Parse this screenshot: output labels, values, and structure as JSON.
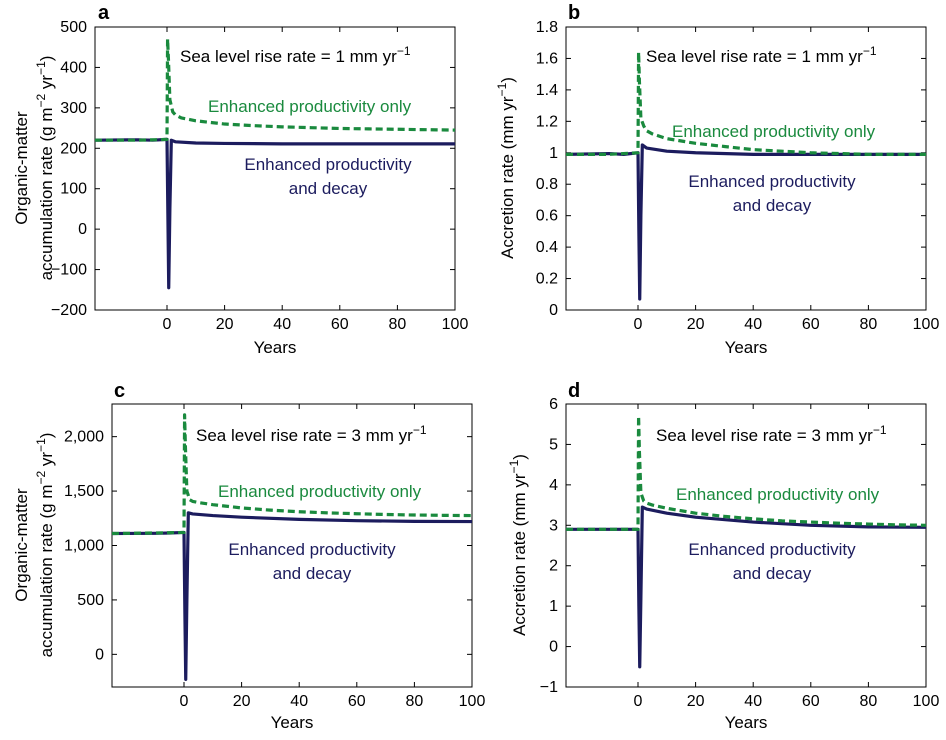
{
  "colors": {
    "enhanced_productivity_only": "#1a8a3e",
    "enhanced_productivity_and_decay": "#1c1c5e"
  },
  "chart_data": [
    {
      "panel": "a",
      "type": "line",
      "xlabel": "Years",
      "ylabel": [
        "Organic-matter",
        "accumulation rate (g m",
        "−2",
        " yr",
        "−1",
        ")"
      ],
      "xlim": [
        -25,
        100
      ],
      "ylim": [
        -200,
        500
      ],
      "xticks": [
        0,
        20,
        40,
        60,
        80,
        100
      ],
      "yticks": [
        -200,
        -100,
        0,
        100,
        200,
        300,
        400,
        500
      ],
      "ytick_labels": [
        "−200",
        "−100",
        "0",
        "100",
        "200",
        "300",
        "400",
        "500"
      ],
      "title_annotation": {
        "text": "Sea level rise rate = 1 mm yr",
        "sup": "−1"
      },
      "series": [
        {
          "name": "Enhanced productivity only",
          "style": "dashed",
          "color": "#1a8a3e",
          "x": [
            -25,
            -10,
            0,
            0.2,
            0.5,
            1,
            2,
            3,
            5,
            10,
            20,
            30,
            40,
            50,
            60,
            70,
            80,
            90,
            100
          ],
          "y": [
            220,
            220,
            222,
            470,
            420,
            320,
            290,
            282,
            275,
            268,
            260,
            256,
            253,
            251,
            249,
            248,
            247,
            246,
            245
          ]
        },
        {
          "name": "Enhanced productivity and decay",
          "style": "solid",
          "color": "#1c1c5e",
          "x": [
            -25,
            -10,
            -5,
            0,
            0.3,
            0.6,
            1,
            1.5,
            3,
            10,
            20,
            40,
            60,
            80,
            100
          ],
          "y": [
            220,
            221,
            220,
            222,
            40,
            -145,
            50,
            220,
            216,
            213,
            212,
            211,
            211,
            211,
            211
          ]
        }
      ],
      "labels": [
        {
          "lines": [
            "Enhanced productivity only"
          ],
          "series": 0
        },
        {
          "lines": [
            "Enhanced productivity",
            "and decay"
          ],
          "series": 1
        }
      ]
    },
    {
      "panel": "b",
      "type": "line",
      "xlabel": "Years",
      "ylabel": [
        "Accretion rate (mm yr",
        "−1",
        ")"
      ],
      "xlim": [
        -25,
        100
      ],
      "ylim": [
        0,
        1.8
      ],
      "xticks": [
        0,
        20,
        40,
        60,
        80,
        100
      ],
      "yticks": [
        0,
        0.2,
        0.4,
        0.6,
        0.8,
        1,
        1.2,
        1.4,
        1.6,
        1.8
      ],
      "ytick_labels": [
        "0",
        "0.2",
        "0.4",
        "0.6",
        "0.8",
        "1",
        "1.2",
        "1.4",
        "1.6",
        "1.8"
      ],
      "title_annotation": {
        "text": "Sea level rise rate = 1 mm yr",
        "sup": "−1"
      },
      "series": [
        {
          "name": "Enhanced productivity only",
          "style": "dashed",
          "color": "#1a8a3e",
          "x": [
            -25,
            -10,
            0,
            0.2,
            0.5,
            1,
            2,
            3,
            5,
            10,
            20,
            30,
            40,
            50,
            60,
            70,
            80,
            90,
            100
          ],
          "y": [
            0.99,
            0.99,
            1.0,
            1.64,
            1.45,
            1.22,
            1.17,
            1.14,
            1.12,
            1.09,
            1.06,
            1.04,
            1.02,
            1.01,
            1.0,
            0.995,
            0.99,
            0.99,
            0.99
          ]
        },
        {
          "name": "Enhanced productivity and decay",
          "style": "solid",
          "color": "#1c1c5e",
          "x": [
            -25,
            -10,
            -5,
            0,
            0.3,
            0.6,
            1,
            1.5,
            3,
            10,
            20,
            40,
            60,
            80,
            100
          ],
          "y": [
            0.99,
            0.995,
            0.99,
            1.0,
            0.5,
            0.07,
            0.6,
            1.05,
            1.03,
            1.01,
            1.0,
            0.99,
            0.99,
            0.99,
            0.99
          ]
        }
      ],
      "labels": [
        {
          "lines": [
            "Enhanced productivity only"
          ],
          "series": 0
        },
        {
          "lines": [
            "Enhanced productivity",
            "and decay"
          ],
          "series": 1
        }
      ]
    },
    {
      "panel": "c",
      "type": "line",
      "xlabel": "Years",
      "ylabel": [
        "Organic-matter",
        "accumulation rate (g m",
        "−2",
        " yr",
        "−1",
        ")"
      ],
      "xlim": [
        -25,
        100
      ],
      "ylim": [
        -300,
        2300
      ],
      "xticks": [
        0,
        20,
        40,
        60,
        80,
        100
      ],
      "yticks": [
        0,
        500,
        1000,
        1500,
        2000
      ],
      "ytick_labels": [
        "0",
        "500",
        "1,000",
        "1,500",
        "2,000"
      ],
      "title_annotation": {
        "text": "Sea level rise rate = 3 mm yr",
        "sup": "−1"
      },
      "series": [
        {
          "name": "Enhanced productivity only",
          "style": "dashed",
          "color": "#1a8a3e",
          "x": [
            -25,
            -10,
            0,
            0.2,
            0.5,
            1,
            2,
            3,
            5,
            10,
            20,
            30,
            40,
            50,
            60,
            70,
            80,
            90,
            100
          ],
          "y": [
            1110,
            1115,
            1120,
            2200,
            1900,
            1500,
            1420,
            1405,
            1395,
            1375,
            1345,
            1325,
            1310,
            1300,
            1292,
            1285,
            1280,
            1277,
            1275
          ]
        },
        {
          "name": "Enhanced productivity and decay",
          "style": "solid",
          "color": "#1c1c5e",
          "x": [
            -25,
            -10,
            -5,
            0,
            0.3,
            0.6,
            1,
            1.5,
            3,
            10,
            20,
            40,
            60,
            80,
            100
          ],
          "y": [
            1110,
            1112,
            1115,
            1120,
            400,
            -230,
            500,
            1300,
            1290,
            1275,
            1260,
            1240,
            1228,
            1222,
            1220
          ]
        }
      ],
      "labels": [
        {
          "lines": [
            "Enhanced productivity only"
          ],
          "series": 0
        },
        {
          "lines": [
            "Enhanced productivity",
            "and decay"
          ],
          "series": 1
        }
      ]
    },
    {
      "panel": "d",
      "type": "line",
      "xlabel": "Years",
      "ylabel": [
        "Accretion rate (mm yr",
        "−1",
        ")"
      ],
      "xlim": [
        -25,
        100
      ],
      "ylim": [
        -1,
        6
      ],
      "xticks": [
        0,
        20,
        40,
        60,
        80,
        100
      ],
      "yticks": [
        -1,
        0,
        1,
        2,
        3,
        4,
        5,
        6
      ],
      "ytick_labels": [
        "−1",
        "0",
        "1",
        "2",
        "3",
        "4",
        "5",
        "6"
      ],
      "title_annotation": {
        "text": "Sea level rise rate = 3 mm yr",
        "sup": "−1"
      },
      "series": [
        {
          "name": "Enhanced productivity only",
          "style": "dashed",
          "color": "#1a8a3e",
          "x": [
            -25,
            -10,
            0,
            0.2,
            0.5,
            1,
            2,
            3,
            5,
            10,
            20,
            30,
            40,
            50,
            60,
            70,
            80,
            90,
            100
          ],
          "y": [
            2.9,
            2.9,
            2.9,
            5.7,
            4.8,
            3.8,
            3.6,
            3.55,
            3.5,
            3.42,
            3.3,
            3.22,
            3.16,
            3.11,
            3.08,
            3.05,
            3.03,
            3.01,
            3.0
          ]
        },
        {
          "name": "Enhanced productivity and decay",
          "style": "solid",
          "color": "#1c1c5e",
          "x": [
            -25,
            -10,
            -5,
            0,
            0.3,
            0.6,
            1,
            1.5,
            3,
            10,
            20,
            40,
            60,
            80,
            100
          ],
          "y": [
            2.9,
            2.9,
            2.9,
            2.9,
            1.0,
            -0.5,
            1.2,
            3.45,
            3.4,
            3.3,
            3.2,
            3.08,
            3.0,
            2.96,
            2.95
          ]
        }
      ],
      "labels": [
        {
          "lines": [
            "Enhanced productivity only"
          ],
          "series": 0
        },
        {
          "lines": [
            "Enhanced productivity",
            "and decay"
          ],
          "series": 1
        }
      ]
    }
  ]
}
